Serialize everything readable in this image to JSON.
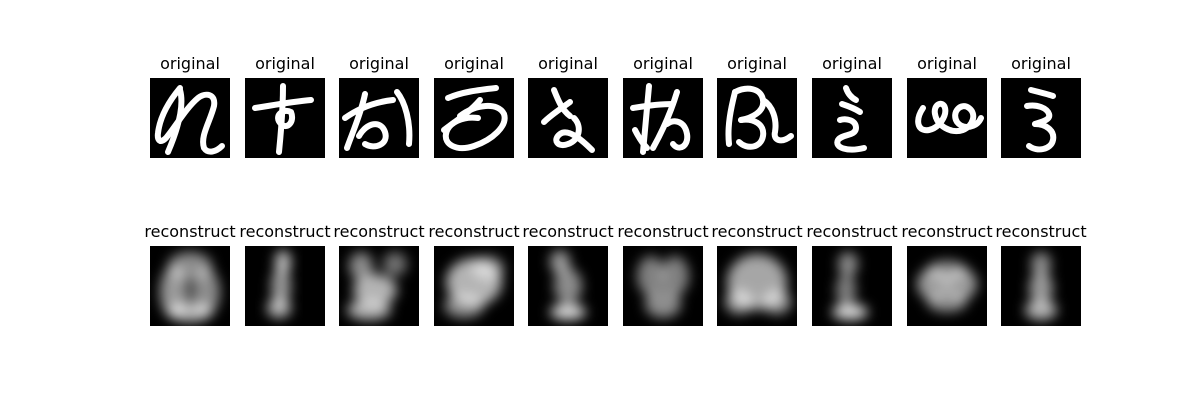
{
  "rows": [
    {
      "title": "original",
      "style": "sharp",
      "images": [
        {
          "title": "original"
        },
        {
          "title": "original"
        },
        {
          "title": "original"
        },
        {
          "title": "original"
        },
        {
          "title": "original"
        },
        {
          "title": "original"
        },
        {
          "title": "original"
        },
        {
          "title": "original"
        },
        {
          "title": "original"
        },
        {
          "title": "original"
        }
      ]
    },
    {
      "title": "reconstruct",
      "style": "blurred",
      "images": [
        {
          "title": "reconstruct"
        },
        {
          "title": "reconstruct"
        },
        {
          "title": "reconstruct"
        },
        {
          "title": "reconstruct"
        },
        {
          "title": "reconstruct"
        },
        {
          "title": "reconstruct"
        },
        {
          "title": "reconstruct"
        },
        {
          "title": "reconstruct"
        },
        {
          "title": "reconstruct"
        },
        {
          "title": "reconstruct"
        }
      ]
    }
  ],
  "colors": {
    "background": "#000000",
    "stroke": "#ffffff",
    "text": "#000000"
  }
}
